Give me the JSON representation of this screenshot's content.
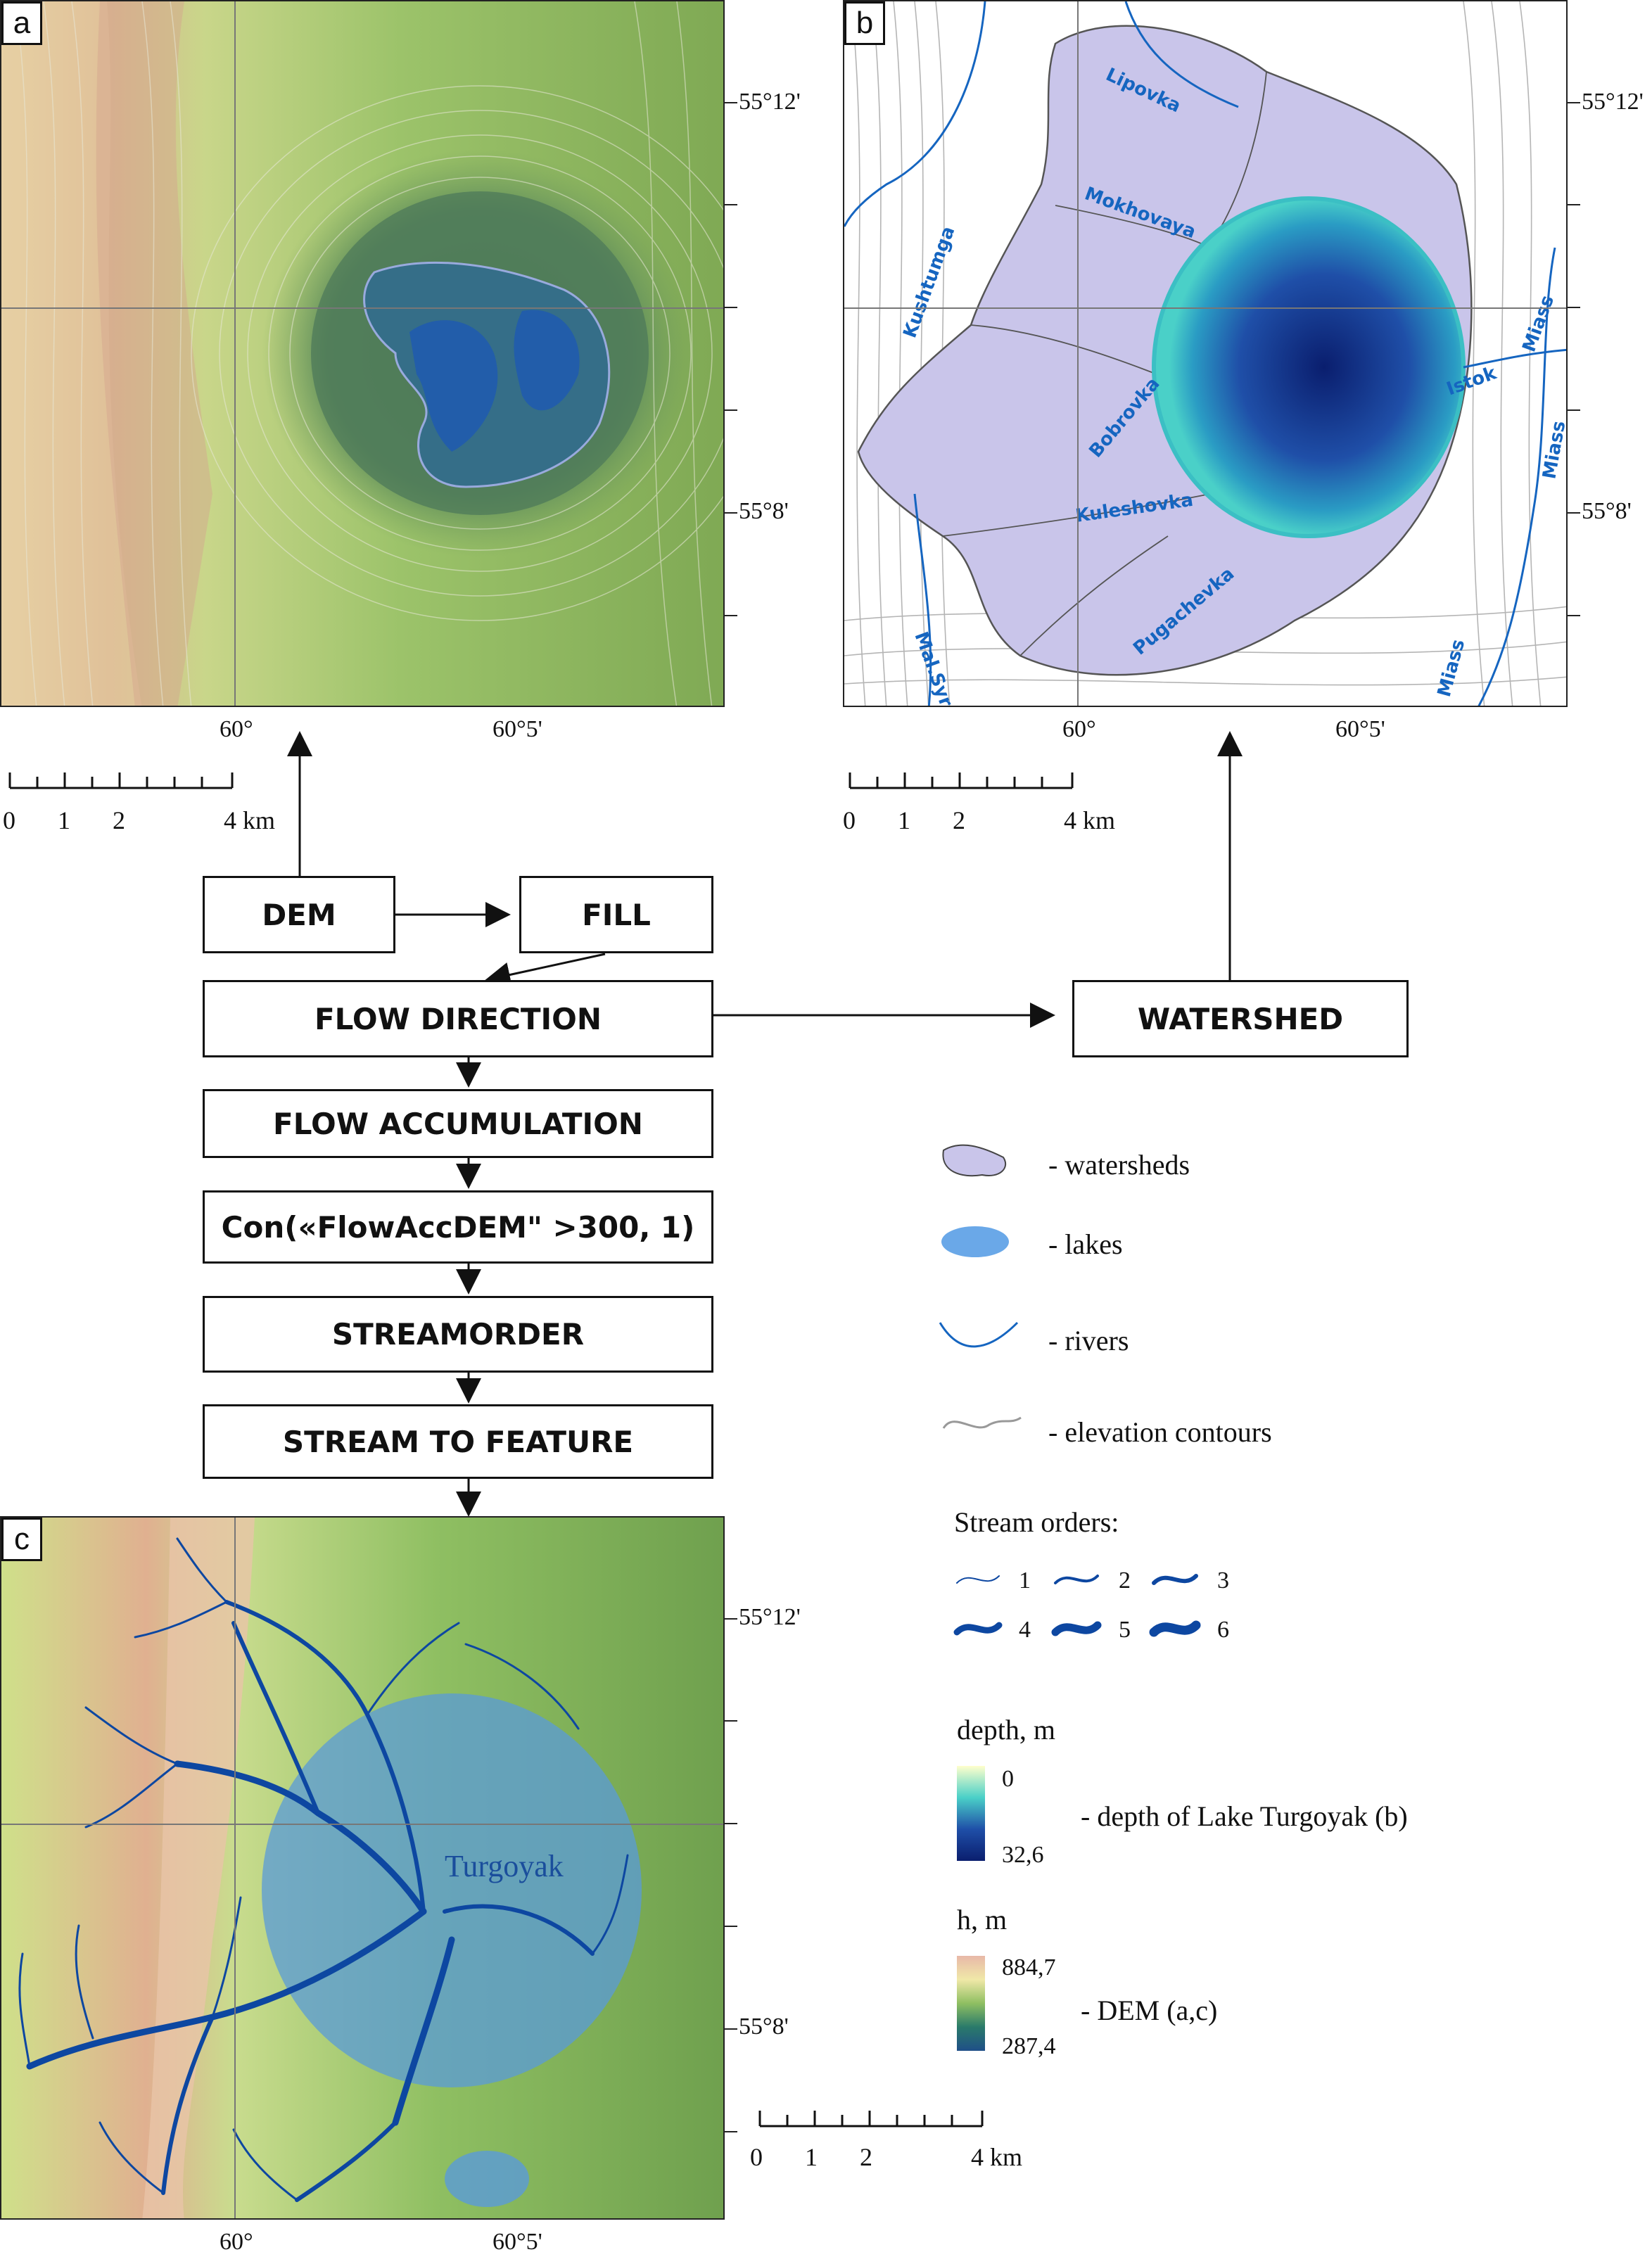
{
  "panels": {
    "a": {
      "letter": "a"
    },
    "b": {
      "letter": "b"
    },
    "c": {
      "letter": "c"
    }
  },
  "coords": {
    "lat_top": "55°12'",
    "lat_bottom": "55°8'",
    "lon_left": "60°",
    "lon_right": "60°5'"
  },
  "scale": {
    "t0": "0",
    "t1": "1",
    "t2": "2",
    "t4": "4 km"
  },
  "rivers_b": [
    "Lipovka",
    "Mokhovaya",
    "Kushtumga",
    "Bobrovka",
    "Kuleshovka",
    "Mal.Syrostan",
    "Pugachevka",
    "Istok",
    "Miass",
    "Miass",
    "Miass"
  ],
  "lake_label_c": "Turgoyak",
  "flowchart": {
    "dem": "DEM",
    "fill": "FILL",
    "flow_direction": "FLOW DIRECTION",
    "watershed": "WATERSHED",
    "flow_accumulation": "FLOW ACCUMULATION",
    "con": "Con(«FlowAccDEM\" >300, 1)",
    "streamorder": "STREAMORDER",
    "stream_to_feature": "STREAM TO FEATURE"
  },
  "legend": {
    "watersheds": "- watersheds",
    "lakes": "- lakes",
    "rivers": "- rivers",
    "contours": "- elevation contours",
    "stream_orders_title": "Stream orders:",
    "orders": [
      "1",
      "2",
      "3",
      "4",
      "5",
      "6"
    ],
    "depth_title": "depth, m",
    "depth_min": "0",
    "depth_max": "32,6",
    "depth_desc": "- depth of Lake Turgoyak (b)",
    "h_title": "h, m",
    "h_max": "884,7",
    "h_min": "287,4",
    "h_desc": "- DEM (a,c)"
  },
  "colors": {
    "watershed_fill": "#c9c5ea",
    "lake_light": "#3bbfc4",
    "lake_dark": "#0a1e6e",
    "river": "#1565c0",
    "stream": "#0d47a1"
  }
}
